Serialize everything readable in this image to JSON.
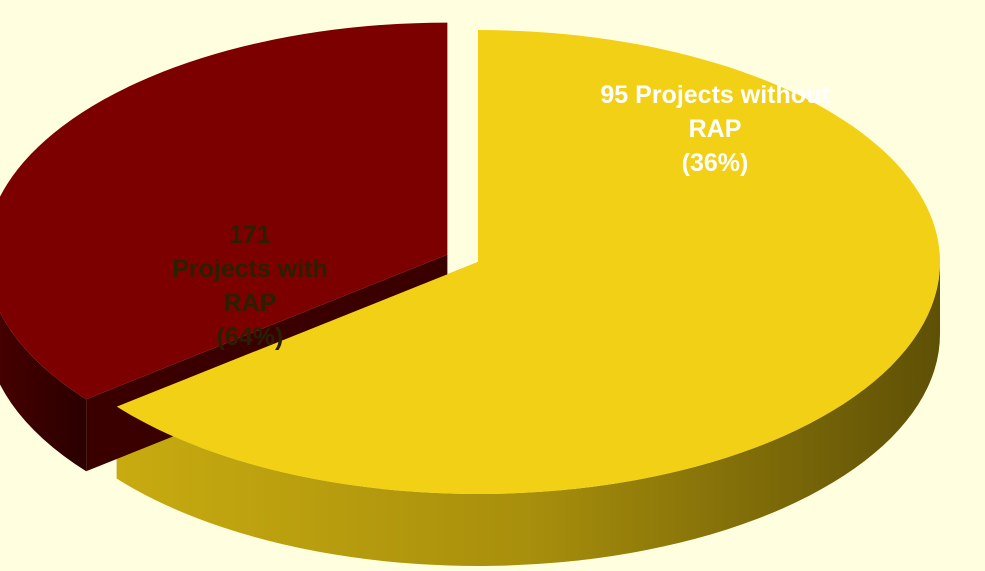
{
  "chart_data": {
    "type": "pie",
    "categories": [
      "Projects with RAP",
      "Projects without RAP"
    ],
    "values": [
      171,
      95
    ],
    "percent_labels": [
      "(64%)",
      "(36%)"
    ],
    "colors": [
      "#f2d016",
      "#7d0000"
    ],
    "start_angle": 90,
    "exploded": [
      false,
      true
    ]
  }
}
